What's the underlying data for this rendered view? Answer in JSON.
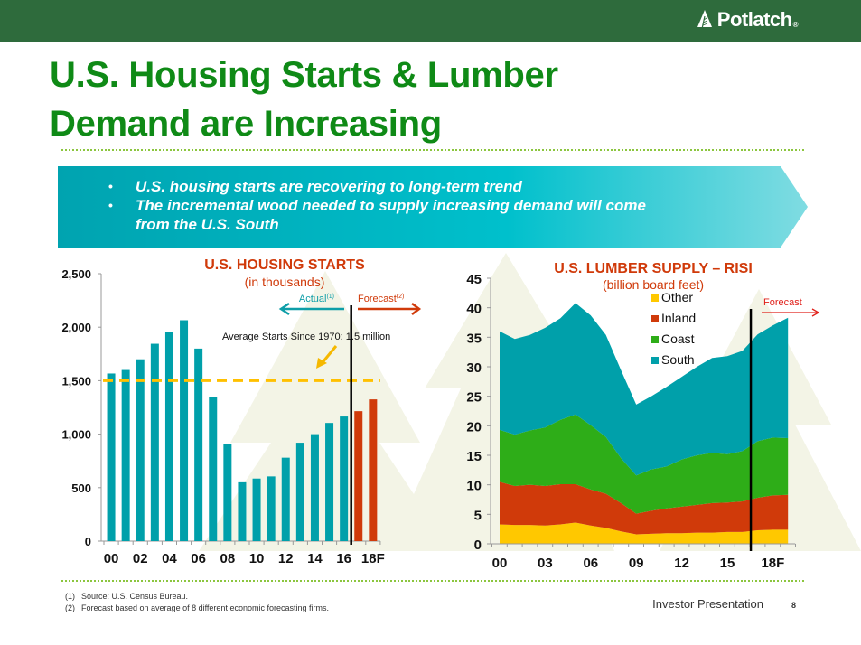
{
  "header": {
    "logo_text": "Potlatch",
    "logo_mark": "®",
    "logo_icon": "tree-icon",
    "bar_color": "#2e6b3c"
  },
  "title": {
    "line1": "U.S. Housing Starts & Lumber",
    "line2": "Demand are Increasing",
    "color": "#0f8a16"
  },
  "banner": {
    "bullets": [
      "U.S. housing starts are recovering to long-term trend",
      "The incremental wood needed to supply increasing demand will come from the U.S. South"
    ],
    "bullet2_line1": "The incremental wood needed to supply increasing demand will come",
    "bullet2_line2": "from the U.S. South"
  },
  "chart_data": [
    {
      "type": "bar",
      "title": "U.S. HOUSING STARTS",
      "subtitle": "(in thousands)",
      "xlabel": "",
      "ylabel": "",
      "ylim": [
        0,
        2500
      ],
      "yticks": [
        0,
        500,
        1000,
        1500,
        2000,
        2500
      ],
      "ytick_labels": [
        "0",
        "500",
        "1,000",
        "1,500",
        "2,000",
        "2,500"
      ],
      "categories": [
        "00",
        "01",
        "02",
        "03",
        "04",
        "05",
        "06",
        "07",
        "08",
        "09",
        "10",
        "11",
        "12",
        "13",
        "14",
        "15",
        "16",
        "17",
        "18F"
      ],
      "xtick_labels": [
        "00",
        "02",
        "04",
        "06",
        "08",
        "10",
        "12",
        "14",
        "16",
        "18F"
      ],
      "series": [
        {
          "name": "Actual",
          "values": [
            1567,
            1600,
            1700,
            1845,
            1955,
            2065,
            1800,
            1350,
            905,
            550,
            585,
            605,
            780,
            920,
            1000,
            1105,
            1165,
            null,
            null
          ],
          "color": "#00a0aa"
        },
        {
          "name": "Forecast",
          "values": [
            null,
            null,
            null,
            null,
            null,
            null,
            null,
            null,
            null,
            null,
            null,
            null,
            null,
            null,
            null,
            null,
            null,
            1215,
            1325
          ],
          "color": "#d03a0a"
        }
      ],
      "reference_line": {
        "value": 1500,
        "label": "Average Starts Since 1970: 1.5 million",
        "color": "#ffc000",
        "style": "dashed"
      },
      "divider_after": "16",
      "annotations": {
        "actual_label": "Actual",
        "actual_sup": "(1)",
        "forecast_label": "Forecast",
        "forecast_sup": "(2)"
      },
      "title_color": "#d03a0a",
      "grid": false
    },
    {
      "type": "area",
      "stacked": true,
      "title": "U.S. LUMBER SUPPLY – RISI",
      "subtitle": "(billion board feet)",
      "xlabel": "",
      "ylabel": "",
      "ylim": [
        0,
        45
      ],
      "yticks": [
        0,
        5,
        10,
        15,
        20,
        25,
        30,
        35,
        40,
        45
      ],
      "x": [
        "00",
        "01",
        "02",
        "03",
        "04",
        "05",
        "06",
        "07",
        "08",
        "09",
        "10",
        "11",
        "12",
        "13",
        "14",
        "15",
        "16",
        "17",
        "18",
        "19"
      ],
      "xtick_labels": {
        "00": "00",
        "03": "03",
        "06": "06",
        "09": "09",
        "12": "12",
        "15": "15",
        "18": "18F"
      },
      "series": [
        {
          "name": "Other",
          "color": "#ffc800",
          "values": [
            3.3,
            3.2,
            3.2,
            3.1,
            3.3,
            3.6,
            3.1,
            2.7,
            2.1,
            1.6,
            1.7,
            1.8,
            1.8,
            1.9,
            1.9,
            2.0,
            2.0,
            2.3,
            2.4,
            2.4
          ]
        },
        {
          "name": "Inland",
          "color": "#d03a0a",
          "values": [
            7.2,
            6.6,
            6.8,
            6.7,
            6.8,
            6.5,
            6.1,
            5.8,
            4.8,
            3.5,
            3.9,
            4.2,
            4.5,
            4.7,
            5.0,
            5.0,
            5.2,
            5.5,
            5.8,
            5.9
          ]
        },
        {
          "name": "Coast",
          "color": "#2ead18",
          "values": [
            8.8,
            8.7,
            9.2,
            9.9,
            10.9,
            11.8,
            10.9,
            9.6,
            7.6,
            6.5,
            7.0,
            7.1,
            8.0,
            8.4,
            8.5,
            8.2,
            8.5,
            9.6,
            9.8,
            9.6
          ]
        },
        {
          "name": "South",
          "color": "#00a0aa",
          "values": [
            16.7,
            16.2,
            16.2,
            16.9,
            17.2,
            18.9,
            18.6,
            17.3,
            14.9,
            12.0,
            12.4,
            13.5,
            14.0,
            15.0,
            16.1,
            16.6,
            17.0,
            18.1,
            19.0,
            20.4
          ]
        }
      ],
      "legend": [
        "Other",
        "Inland",
        "Coast",
        "South"
      ],
      "legend_position": "top-center",
      "forecast_label": "Forecast",
      "divider_after": "16",
      "title_color": "#d03a0a",
      "grid": false
    }
  ],
  "footer": {
    "notes": [
      {
        "num": "(1)",
        "text": "Source: U.S. Census Bureau."
      },
      {
        "num": "(2)",
        "text": "Forecast based on average of 8 different economic forecasting firms."
      }
    ],
    "label": "Investor Presentation",
    "page": "8"
  }
}
